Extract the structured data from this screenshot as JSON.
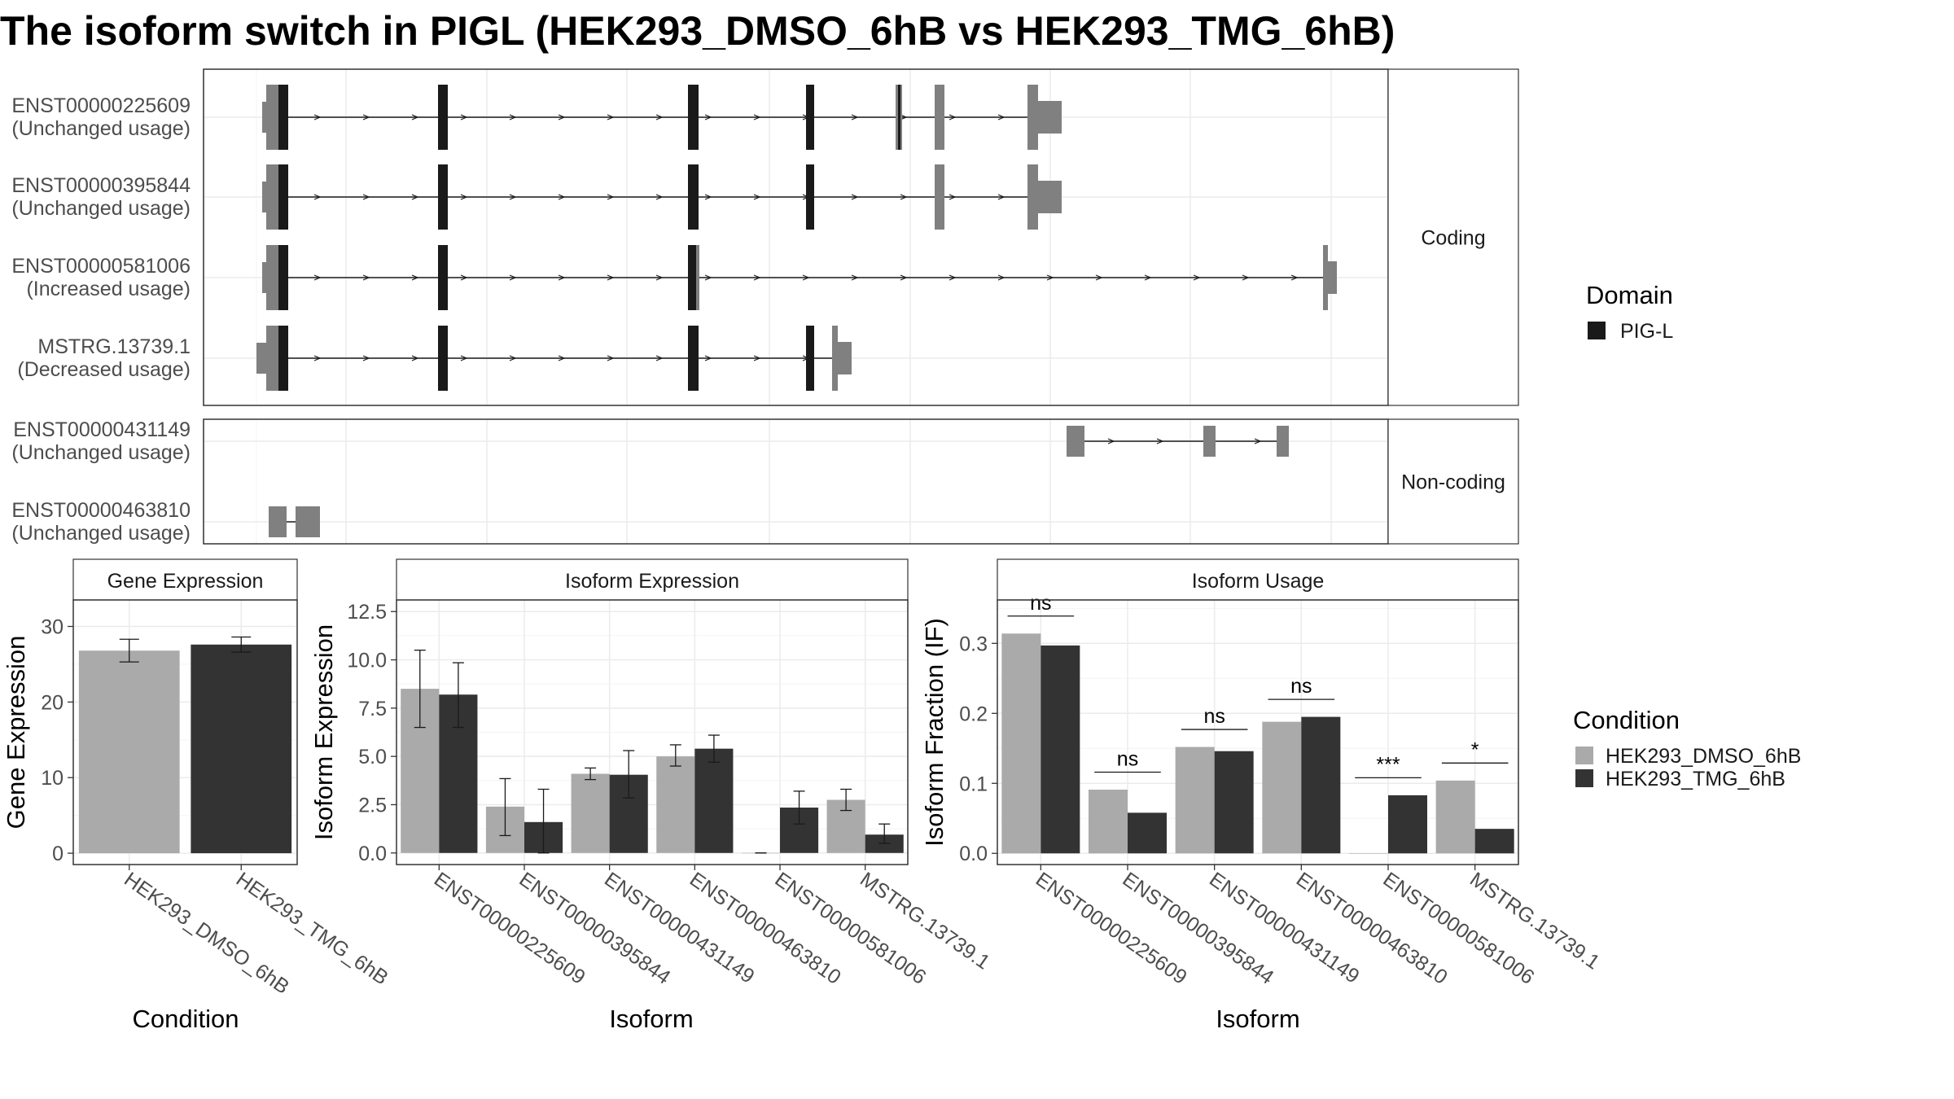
{
  "title": "The isoform switch in PIGL (HEK293_DMSO_6hB vs HEK293_TMG_6hB)",
  "colors": {
    "dmso": "#aaaaaa",
    "tmg": "#333333",
    "domain": "#1a1a1a",
    "utr": "#808080",
    "grid": "#ebebeb",
    "panel_border": "#333333",
    "strip_fill": "#ffffff"
  },
  "structure": {
    "facets": [
      {
        "label": "Coding",
        "tracks": [
          {
            "id": "ENST00000225609",
            "usage": "(Unchanged usage)"
          },
          {
            "id": "ENST00000395844",
            "usage": "(Unchanged usage)"
          },
          {
            "id": "ENST00000581006",
            "usage": "(Increased usage)"
          },
          {
            "id": "MSTRG.13739.1",
            "usage": "(Decreased usage)"
          }
        ]
      },
      {
        "label": "Non-coding",
        "tracks": [
          {
            "id": "ENST00000431149",
            "usage": "(Unchanged usage)"
          },
          {
            "id": "ENST00000463810",
            "usage": "(Unchanged usage)"
          }
        ]
      }
    ],
    "legend": {
      "title": "Domain",
      "items": [
        {
          "name": "PIG-L",
          "color": "#1a1a1a"
        }
      ]
    }
  },
  "chart_data": [
    {
      "type": "bar",
      "title": "Gene Expression",
      "xlabel": "Condition",
      "ylabel": "Gene Expression",
      "categories": [
        "HEK293_DMSO_6hB",
        "HEK293_TMG_6hB"
      ],
      "values": [
        26.8,
        27.6
      ],
      "errors": [
        [
          25.3,
          28.3
        ],
        [
          26.6,
          28.6
        ]
      ],
      "ylim": [
        -1.5,
        33.5
      ],
      "yticks": [
        0,
        10,
        20,
        30
      ],
      "grid": true
    },
    {
      "type": "bar",
      "title": "Isoform Expression",
      "xlabel": "Isoform",
      "ylabel": "Isoform Expression",
      "categories": [
        "ENST00000225609",
        "ENST00000395844",
        "ENST00000431149",
        "ENST00000463810",
        "ENST00000581006",
        "MSTRG.13739.1"
      ],
      "series": [
        {
          "name": "HEK293_DMSO_6hB",
          "values": [
            8.5,
            2.4,
            4.1,
            5.0,
            0.0,
            2.75
          ],
          "errors": [
            [
              6.5,
              10.5
            ],
            [
              0.9,
              3.85
            ],
            [
              3.8,
              4.4
            ],
            [
              4.5,
              5.6
            ],
            [
              0.0,
              0.0
            ],
            [
              2.2,
              3.3
            ]
          ]
        },
        {
          "name": "HEK293_TMG_6hB",
          "values": [
            8.2,
            1.6,
            4.05,
            5.4,
            2.35,
            0.95
          ],
          "errors": [
            [
              6.5,
              9.85
            ],
            [
              0.0,
              3.3
            ],
            [
              2.85,
              5.3
            ],
            [
              4.7,
              6.1
            ],
            [
              1.5,
              3.2
            ],
            [
              0.5,
              1.5
            ]
          ]
        }
      ],
      "ylim": [
        -0.6,
        13.1
      ],
      "yticks": [
        0.0,
        2.5,
        5.0,
        7.5,
        10.0,
        12.5
      ],
      "ytick_labels": [
        "0.0",
        "2.5",
        "5.0",
        "7.5",
        "10.0",
        "12.5"
      ],
      "grid": true
    },
    {
      "type": "bar",
      "title": "Isoform Usage",
      "xlabel": "Isoform",
      "ylabel": "Isoform Fraction (IF)",
      "categories": [
        "ENST00000225609",
        "ENST00000395844",
        "ENST00000431149",
        "ENST00000463810",
        "ENST00000581006",
        "MSTRG.13739.1"
      ],
      "series": [
        {
          "name": "HEK293_DMSO_6hB",
          "values": [
            0.314,
            0.091,
            0.152,
            0.188,
            0.0,
            0.104
          ]
        },
        {
          "name": "HEK293_TMG_6hB",
          "values": [
            0.297,
            0.058,
            0.146,
            0.195,
            0.083,
            0.035
          ]
        }
      ],
      "significance": [
        "ns",
        "ns",
        "ns",
        "ns",
        "***",
        "*"
      ],
      "ylim": [
        -0.016,
        0.362
      ],
      "yticks": [
        0.0,
        0.1,
        0.2,
        0.3
      ],
      "ytick_labels": [
        "0.0",
        "0.1",
        "0.2",
        "0.3"
      ],
      "grid": true
    }
  ],
  "condition_legend": {
    "title": "Condition",
    "items": [
      {
        "name": "HEK293_DMSO_6hB",
        "color": "#aaaaaa"
      },
      {
        "name": "HEK293_TMG_6hB",
        "color": "#333333"
      }
    ]
  }
}
